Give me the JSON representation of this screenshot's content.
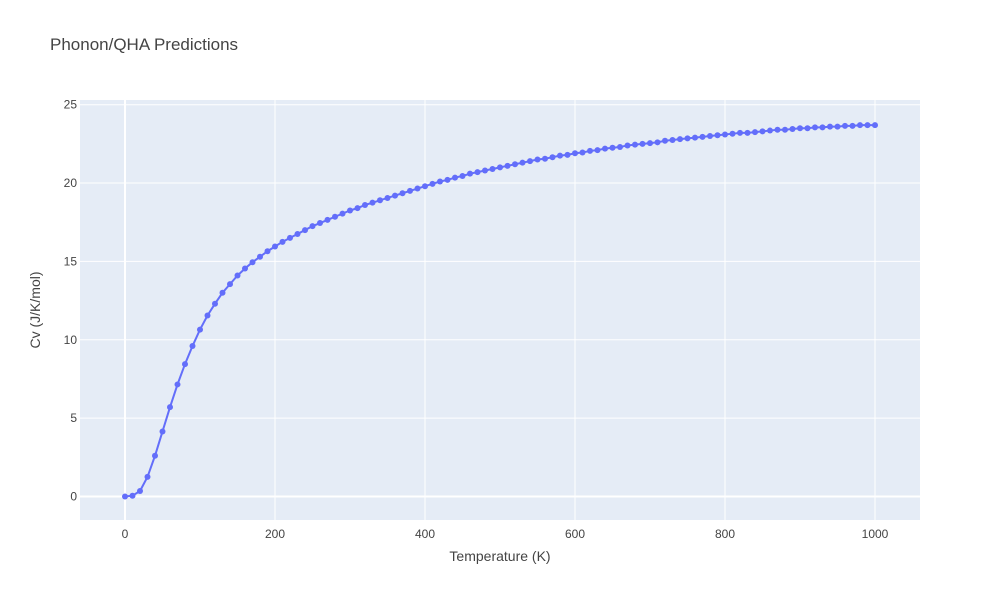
{
  "chart_data": {
    "type": "line",
    "title": "Phonon/QHA Predictions",
    "xlabel": "Temperature (K)",
    "ylabel": "Cv (J/K/mol)",
    "xlim": [
      -60,
      1060
    ],
    "ylim": [
      -1.5,
      25.3
    ],
    "xticks": [
      0,
      200,
      400,
      600,
      800,
      1000
    ],
    "yticks": [
      0,
      5,
      10,
      15,
      20,
      25
    ],
    "x_tick_labels": [
      "0",
      "200",
      "400",
      "600",
      "800",
      "1000"
    ],
    "y_tick_labels": [
      "0",
      "5",
      "10",
      "15",
      "20",
      "25"
    ],
    "grid": true,
    "legend": "none",
    "colors": {
      "line": "#636efa",
      "plot_bg": "#e5ecf6",
      "grid": "#ffffff",
      "text": "#444444"
    },
    "series": [
      {
        "mode": "lines+markers",
        "x": [
          0,
          10,
          20,
          30,
          40,
          50,
          60,
          70,
          80,
          90,
          100,
          110,
          120,
          130,
          140,
          150,
          160,
          170,
          180,
          190,
          200,
          210,
          220,
          230,
          240,
          250,
          260,
          270,
          280,
          290,
          300,
          310,
          320,
          330,
          340,
          350,
          360,
          370,
          380,
          390,
          400,
          410,
          420,
          430,
          440,
          450,
          460,
          470,
          480,
          490,
          500,
          510,
          520,
          530,
          540,
          550,
          560,
          570,
          580,
          590,
          600,
          610,
          620,
          630,
          640,
          650,
          660,
          670,
          680,
          690,
          700,
          710,
          720,
          730,
          740,
          750,
          760,
          770,
          780,
          790,
          800,
          810,
          820,
          830,
          840,
          850,
          860,
          870,
          880,
          890,
          900,
          910,
          920,
          930,
          940,
          950,
          960,
          970,
          980,
          990,
          1000
        ],
        "y": [
          0.0,
          0.05,
          0.35,
          1.25,
          2.6,
          4.15,
          5.7,
          7.15,
          8.45,
          9.6,
          10.65,
          11.55,
          12.3,
          13.0,
          13.55,
          14.1,
          14.55,
          14.95,
          15.3,
          15.65,
          15.95,
          16.25,
          16.5,
          16.75,
          17.0,
          17.25,
          17.45,
          17.65,
          17.85,
          18.05,
          18.25,
          18.4,
          18.6,
          18.75,
          18.9,
          19.05,
          19.2,
          19.35,
          19.5,
          19.65,
          19.8,
          19.95,
          20.1,
          20.2,
          20.35,
          20.45,
          20.6,
          20.7,
          20.8,
          20.9,
          21.0,
          21.1,
          21.2,
          21.3,
          21.4,
          21.5,
          21.55,
          21.65,
          21.75,
          21.8,
          21.9,
          21.95,
          22.05,
          22.1,
          22.2,
          22.25,
          22.3,
          22.4,
          22.45,
          22.5,
          22.55,
          22.6,
          22.7,
          22.75,
          22.8,
          22.85,
          22.9,
          22.95,
          23.0,
          23.05,
          23.1,
          23.15,
          23.2,
          23.2,
          23.25,
          23.3,
          23.35,
          23.4,
          23.4,
          23.45,
          23.5,
          23.5,
          23.55,
          23.55,
          23.6,
          23.6,
          23.65,
          23.65,
          23.7,
          23.7,
          23.7
        ]
      }
    ]
  }
}
